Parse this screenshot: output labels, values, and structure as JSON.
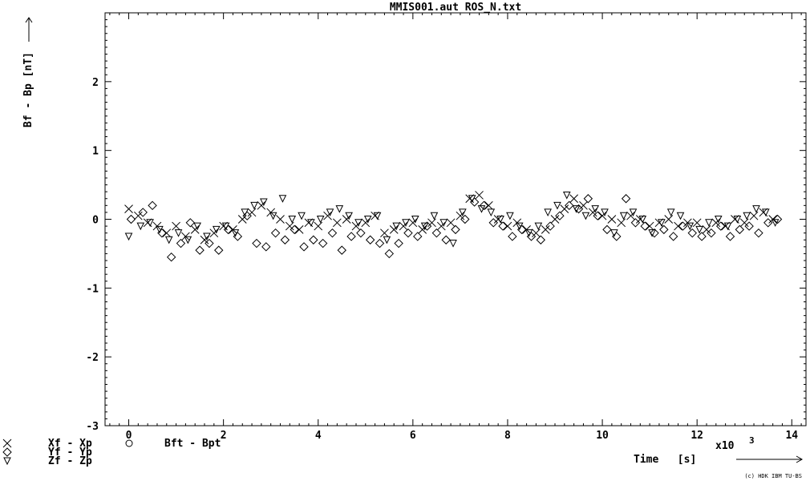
{
  "chart_data": {
    "type": "scatter",
    "title": "MMIS001.aut   ROS_N.txt",
    "ylabel": "Bf - Bp  [nT]",
    "xlabel": "Time   [s]",
    "x_multiplier": "x10",
    "x_multiplier_exp": "3",
    "xlim": [
      -0.5,
      14.3
    ],
    "ylim": [
      -3,
      3
    ],
    "x_ticks": [
      "0",
      "2",
      "4",
      "6",
      "8",
      "10",
      "12",
      "14"
    ],
    "y_ticks": [
      "2",
      "1",
      "0",
      "-1",
      "-2",
      "-3"
    ],
    "grid": false,
    "legend_position": "bottom-left",
    "legend": [
      {
        "symbol": "×",
        "label": "Xf - Xp"
      },
      {
        "symbol": "◇",
        "label": "Yf - Yp"
      },
      {
        "symbol": "▽",
        "label": "Zf - Zp"
      }
    ],
    "legend_extra": {
      "symbol": "○",
      "label": "Bft - Bpt"
    },
    "copyright": "(c) HDK IBM TU-BS",
    "series": [
      {
        "name": "Xf - Xp",
        "marker": "x",
        "points": [
          [
            0.0,
            0.15
          ],
          [
            0.2,
            0.05
          ],
          [
            0.4,
            -0.05
          ],
          [
            0.6,
            -0.1
          ],
          [
            0.8,
            -0.2
          ],
          [
            1.0,
            -0.1
          ],
          [
            1.2,
            -0.25
          ],
          [
            1.4,
            -0.15
          ],
          [
            1.6,
            -0.3
          ],
          [
            1.8,
            -0.2
          ],
          [
            2.0,
            -0.1
          ],
          [
            2.2,
            -0.15
          ],
          [
            2.4,
            0.0
          ],
          [
            2.6,
            0.1
          ],
          [
            2.8,
            0.2
          ],
          [
            3.0,
            0.1
          ],
          [
            3.2,
            0.0
          ],
          [
            3.4,
            -0.1
          ],
          [
            3.6,
            -0.15
          ],
          [
            3.8,
            -0.05
          ],
          [
            4.0,
            -0.1
          ],
          [
            4.2,
            0.05
          ],
          [
            4.4,
            -0.05
          ],
          [
            4.6,
            0.0
          ],
          [
            4.8,
            -0.1
          ],
          [
            5.0,
            -0.05
          ],
          [
            5.2,
            0.05
          ],
          [
            5.4,
            -0.2
          ],
          [
            5.6,
            -0.15
          ],
          [
            5.8,
            -0.1
          ],
          [
            6.0,
            -0.05
          ],
          [
            6.2,
            -0.15
          ],
          [
            6.4,
            -0.05
          ],
          [
            6.6,
            -0.1
          ],
          [
            6.8,
            -0.05
          ],
          [
            7.0,
            0.05
          ],
          [
            7.2,
            0.3
          ],
          [
            7.4,
            0.35
          ],
          [
            7.6,
            0.2
          ],
          [
            7.8,
            0.0
          ],
          [
            8.0,
            -0.1
          ],
          [
            8.2,
            -0.05
          ],
          [
            8.4,
            -0.15
          ],
          [
            8.6,
            -0.2
          ],
          [
            8.8,
            -0.15
          ],
          [
            9.0,
            0.0
          ],
          [
            9.2,
            0.15
          ],
          [
            9.4,
            0.3
          ],
          [
            9.6,
            0.2
          ],
          [
            9.8,
            0.1
          ],
          [
            10.0,
            0.05
          ],
          [
            10.2,
            0.0
          ],
          [
            10.4,
            -0.05
          ],
          [
            10.6,
            0.05
          ],
          [
            10.8,
            0.0
          ],
          [
            11.0,
            -0.1
          ],
          [
            11.2,
            -0.05
          ],
          [
            11.4,
            0.0
          ],
          [
            11.6,
            -0.1
          ],
          [
            11.8,
            -0.05
          ],
          [
            12.0,
            -0.05
          ],
          [
            12.2,
            -0.15
          ],
          [
            12.4,
            -0.05
          ],
          [
            12.6,
            -0.1
          ],
          [
            12.8,
            0.0
          ],
          [
            13.0,
            -0.05
          ],
          [
            13.2,
            0.05
          ],
          [
            13.4,
            0.1
          ],
          [
            13.6,
            0.0
          ]
        ]
      },
      {
        "name": "Yf - Yp",
        "marker": "diamond",
        "points": [
          [
            0.05,
            0.0
          ],
          [
            0.3,
            0.1
          ],
          [
            0.5,
            0.2
          ],
          [
            0.7,
            -0.2
          ],
          [
            0.9,
            -0.55
          ],
          [
            1.1,
            -0.35
          ],
          [
            1.3,
            -0.05
          ],
          [
            1.5,
            -0.45
          ],
          [
            1.7,
            -0.35
          ],
          [
            1.9,
            -0.45
          ],
          [
            2.1,
            -0.15
          ],
          [
            2.3,
            -0.25
          ],
          [
            2.5,
            0.05
          ],
          [
            2.7,
            -0.35
          ],
          [
            2.9,
            -0.4
          ],
          [
            3.1,
            -0.2
          ],
          [
            3.3,
            -0.3
          ],
          [
            3.5,
            -0.15
          ],
          [
            3.7,
            -0.4
          ],
          [
            3.9,
            -0.3
          ],
          [
            4.1,
            -0.35
          ],
          [
            4.3,
            -0.2
          ],
          [
            4.5,
            -0.45
          ],
          [
            4.7,
            -0.25
          ],
          [
            4.9,
            -0.2
          ],
          [
            5.1,
            -0.3
          ],
          [
            5.3,
            -0.35
          ],
          [
            5.5,
            -0.5
          ],
          [
            5.7,
            -0.35
          ],
          [
            5.9,
            -0.2
          ],
          [
            6.1,
            -0.25
          ],
          [
            6.3,
            -0.1
          ],
          [
            6.5,
            -0.2
          ],
          [
            6.7,
            -0.3
          ],
          [
            6.9,
            -0.15
          ],
          [
            7.1,
            0.0
          ],
          [
            7.3,
            0.25
          ],
          [
            7.5,
            0.2
          ],
          [
            7.7,
            -0.05
          ],
          [
            7.9,
            -0.1
          ],
          [
            8.1,
            -0.25
          ],
          [
            8.3,
            -0.15
          ],
          [
            8.5,
            -0.25
          ],
          [
            8.7,
            -0.3
          ],
          [
            8.9,
            -0.1
          ],
          [
            9.1,
            0.05
          ],
          [
            9.3,
            0.2
          ],
          [
            9.5,
            0.15
          ],
          [
            9.7,
            0.3
          ],
          [
            9.9,
            0.05
          ],
          [
            10.1,
            -0.15
          ],
          [
            10.3,
            -0.25
          ],
          [
            10.5,
            0.3
          ],
          [
            10.7,
            -0.05
          ],
          [
            10.9,
            -0.1
          ],
          [
            11.1,
            -0.2
          ],
          [
            11.3,
            -0.15
          ],
          [
            11.5,
            -0.25
          ],
          [
            11.7,
            -0.1
          ],
          [
            11.9,
            -0.2
          ],
          [
            12.1,
            -0.25
          ],
          [
            12.3,
            -0.2
          ],
          [
            12.5,
            -0.1
          ],
          [
            12.7,
            -0.25
          ],
          [
            12.9,
            -0.15
          ],
          [
            13.1,
            -0.1
          ],
          [
            13.3,
            -0.2
          ],
          [
            13.5,
            -0.05
          ],
          [
            13.7,
            0.0
          ]
        ]
      },
      {
        "name": "Zf - Zp",
        "marker": "triangle-down",
        "points": [
          [
            0.0,
            -0.25
          ],
          [
            0.25,
            -0.1
          ],
          [
            0.45,
            -0.05
          ],
          [
            0.65,
            -0.15
          ],
          [
            0.85,
            -0.3
          ],
          [
            1.05,
            -0.2
          ],
          [
            1.25,
            -0.3
          ],
          [
            1.45,
            -0.1
          ],
          [
            1.65,
            -0.25
          ],
          [
            1.85,
            -0.15
          ],
          [
            2.05,
            -0.1
          ],
          [
            2.25,
            -0.2
          ],
          [
            2.45,
            0.1
          ],
          [
            2.65,
            0.2
          ],
          [
            2.85,
            0.25
          ],
          [
            3.05,
            0.05
          ],
          [
            3.25,
            0.3
          ],
          [
            3.45,
            0.0
          ],
          [
            3.65,
            0.05
          ],
          [
            3.85,
            -0.05
          ],
          [
            4.05,
            0.0
          ],
          [
            4.25,
            0.1
          ],
          [
            4.45,
            0.15
          ],
          [
            4.65,
            0.05
          ],
          [
            4.85,
            -0.05
          ],
          [
            5.05,
            0.0
          ],
          [
            5.25,
            0.05
          ],
          [
            5.45,
            -0.3
          ],
          [
            5.65,
            -0.1
          ],
          [
            5.85,
            -0.05
          ],
          [
            6.05,
            0.0
          ],
          [
            6.25,
            -0.1
          ],
          [
            6.45,
            0.05
          ],
          [
            6.65,
            -0.05
          ],
          [
            6.85,
            -0.35
          ],
          [
            7.05,
            0.1
          ],
          [
            7.25,
            0.3
          ],
          [
            7.45,
            0.15
          ],
          [
            7.65,
            0.1
          ],
          [
            7.85,
            0.0
          ],
          [
            8.05,
            0.05
          ],
          [
            8.25,
            -0.1
          ],
          [
            8.45,
            -0.2
          ],
          [
            8.65,
            -0.1
          ],
          [
            8.85,
            0.1
          ],
          [
            9.05,
            0.2
          ],
          [
            9.25,
            0.35
          ],
          [
            9.45,
            0.15
          ],
          [
            9.65,
            0.05
          ],
          [
            9.85,
            0.15
          ],
          [
            10.05,
            0.1
          ],
          [
            10.25,
            -0.2
          ],
          [
            10.45,
            0.05
          ],
          [
            10.65,
            0.1
          ],
          [
            10.85,
            0.0
          ],
          [
            11.05,
            -0.2
          ],
          [
            11.25,
            -0.05
          ],
          [
            11.45,
            0.1
          ],
          [
            11.65,
            0.05
          ],
          [
            11.85,
            -0.1
          ],
          [
            12.05,
            -0.15
          ],
          [
            12.25,
            -0.05
          ],
          [
            12.45,
            0.0
          ],
          [
            12.65,
            -0.1
          ],
          [
            12.85,
            0.0
          ],
          [
            13.05,
            0.05
          ],
          [
            13.25,
            0.15
          ],
          [
            13.45,
            0.1
          ],
          [
            13.65,
            -0.05
          ]
        ]
      }
    ]
  }
}
